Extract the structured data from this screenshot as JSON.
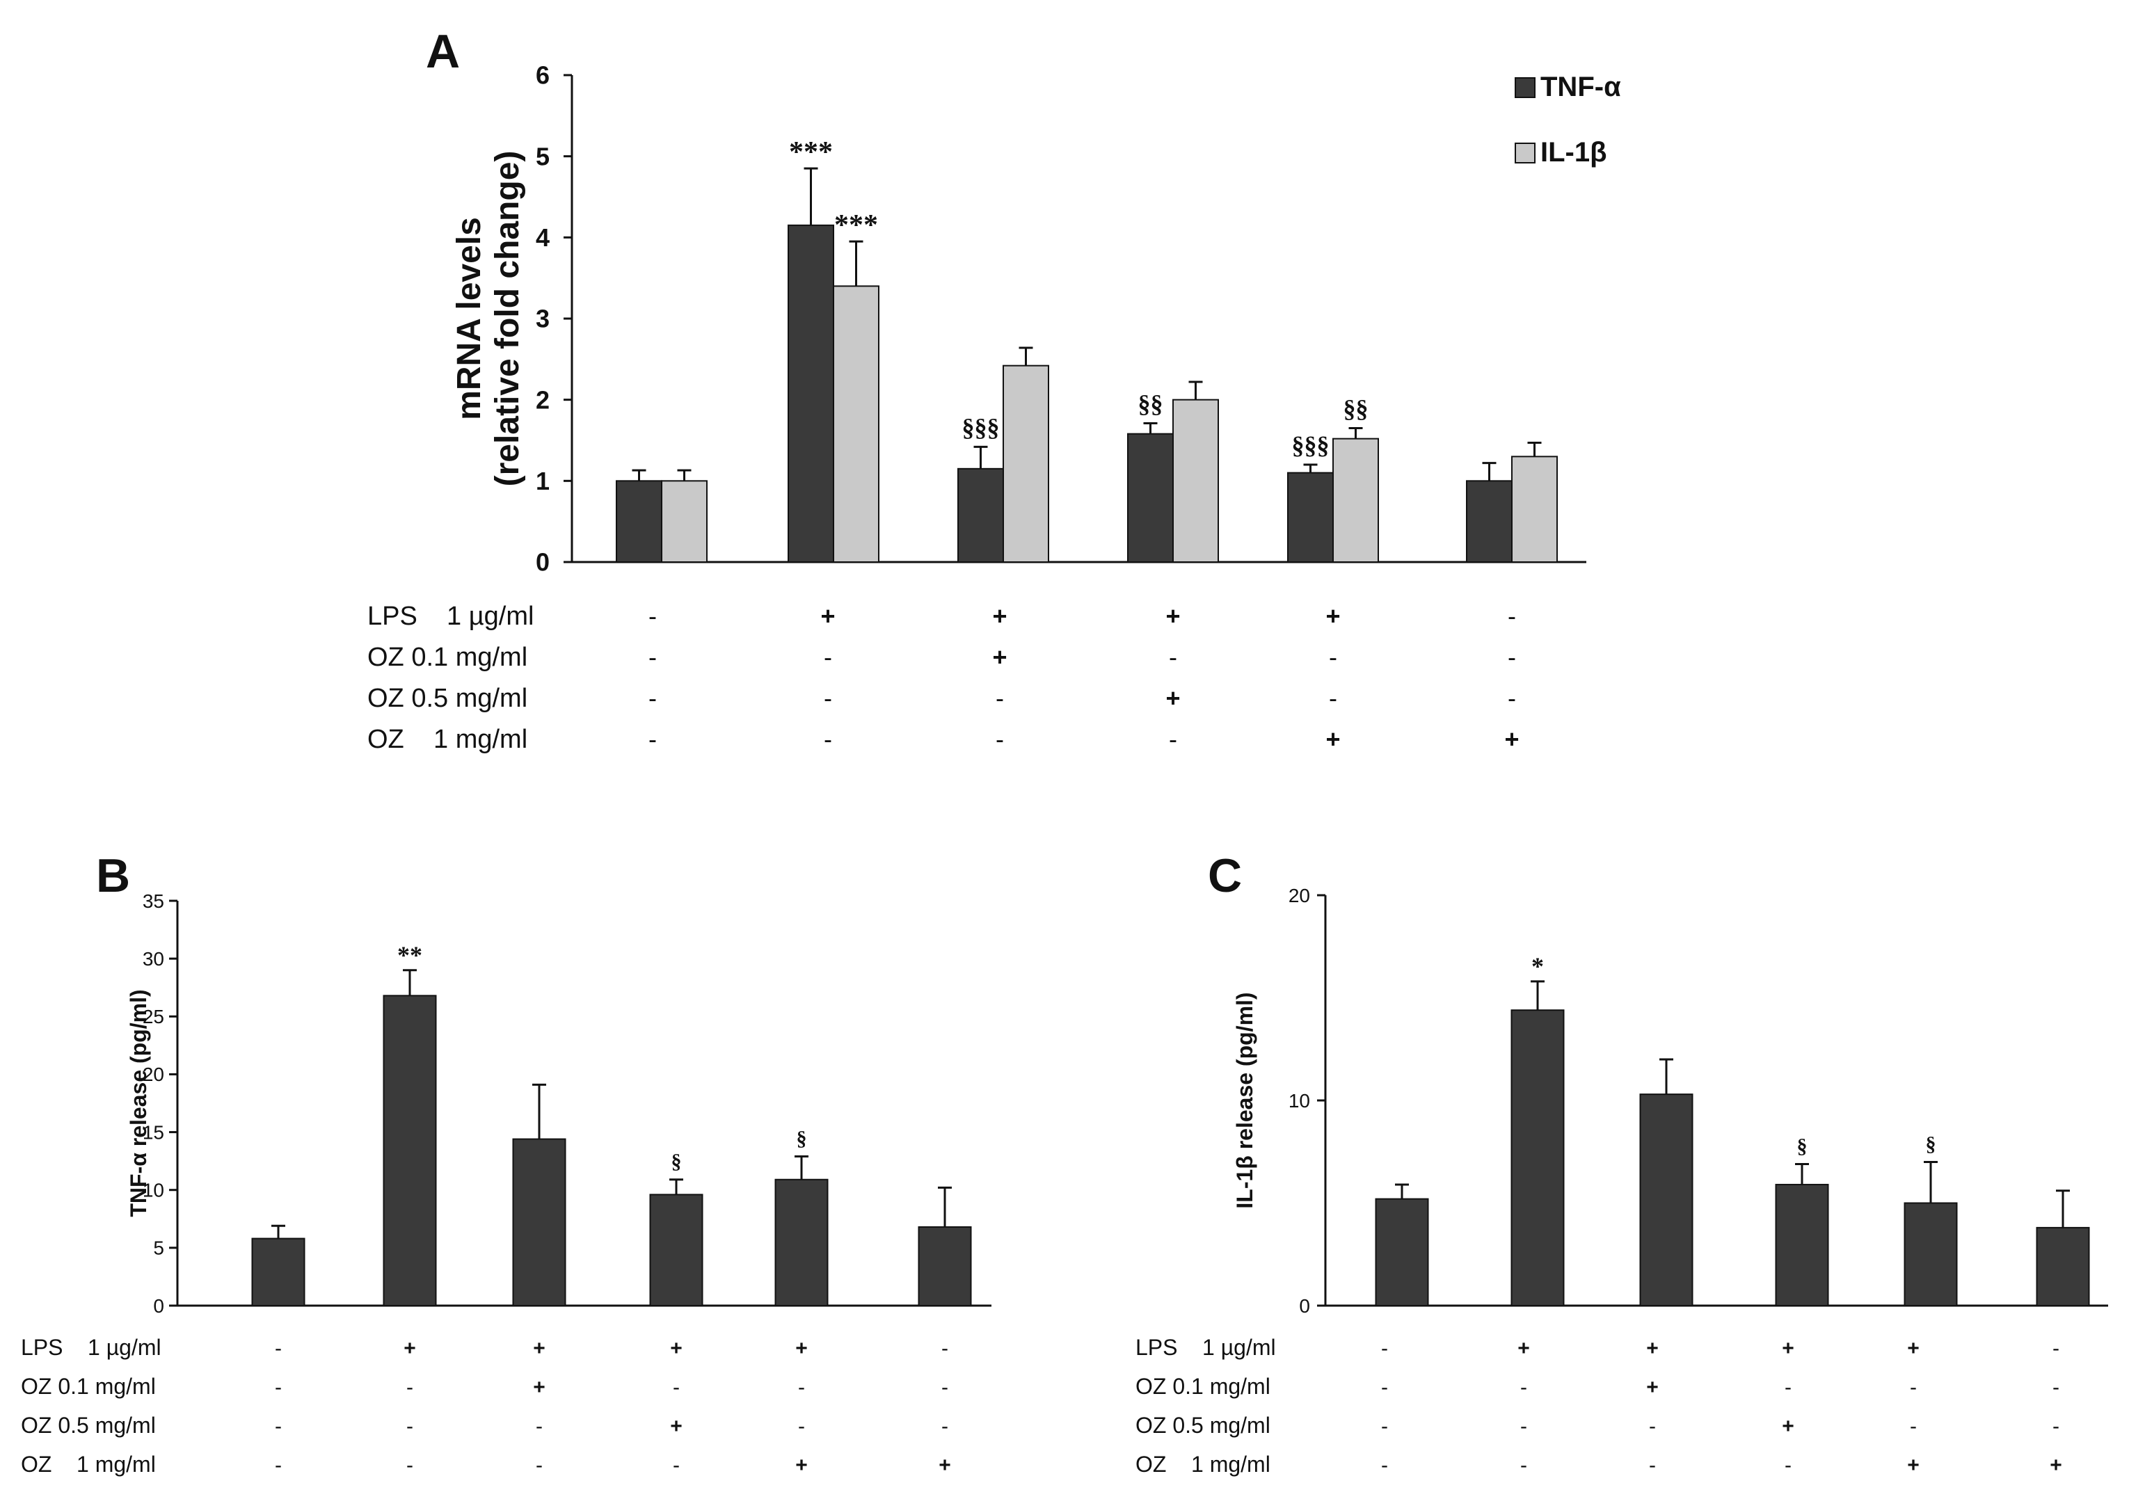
{
  "chart_data": [
    {
      "panel": "A",
      "type": "bar",
      "ylabel": [
        "mRNA levels",
        "(relative fold change)"
      ],
      "ylim": [
        0,
        6
      ],
      "yticks": [
        "0",
        "1",
        "2",
        "3",
        "4",
        "5",
        "6"
      ],
      "series": [
        {
          "name": "TNF-α",
          "color": "#3a3a3a",
          "values": [
            1.0,
            4.15,
            1.15,
            1.58,
            1.1,
            1.0
          ],
          "errors": [
            0.13,
            0.7,
            0.27,
            0.13,
            0.1,
            0.22
          ],
          "annotations": [
            "",
            "***",
            "§§§",
            "§§",
            "§§§",
            ""
          ]
        },
        {
          "name": "IL-1β",
          "color": "#c9c9c9",
          "values": [
            1.0,
            3.4,
            2.42,
            2.0,
            1.52,
            1.3
          ],
          "errors": [
            0.13,
            0.55,
            0.22,
            0.22,
            0.13,
            0.17
          ],
          "annotations": [
            "",
            "***",
            "",
            "",
            "§§",
            ""
          ]
        }
      ],
      "legend": [
        "TNF-α",
        "IL-1β"
      ],
      "conditions": {
        "labels": [
          "LPS    1 µg/ml",
          "OZ 0.1 mg/ml",
          "OZ 0.5 mg/ml",
          "OZ    1 mg/ml"
        ],
        "rows": [
          [
            "-",
            "+",
            "+",
            "+",
            "+",
            "-"
          ],
          [
            "-",
            "-",
            "+",
            "-",
            "-",
            "-"
          ],
          [
            "-",
            "-",
            "-",
            "+",
            "-",
            "-"
          ],
          [
            "-",
            "-",
            "-",
            "-",
            "+",
            "+"
          ]
        ]
      }
    },
    {
      "panel": "B",
      "type": "bar",
      "ylabel": [
        "TNF-α release (pg/ml)"
      ],
      "ylim": [
        0,
        35
      ],
      "yticks": [
        "0",
        "5",
        "10",
        "15",
        "20",
        "25",
        "30",
        "35"
      ],
      "series": [
        {
          "name": "TNF-α release",
          "color": "#3a3a3a",
          "values": [
            5.8,
            26.8,
            14.4,
            9.6,
            10.9,
            6.8
          ],
          "errors": [
            1.1,
            2.2,
            4.7,
            1.3,
            2.0,
            3.4
          ],
          "annotations": [
            "",
            "**",
            "",
            "§",
            "§",
            ""
          ]
        }
      ],
      "conditions": {
        "labels": [
          "LPS    1 µg/ml",
          "OZ 0.1 mg/ml",
          "OZ 0.5 mg/ml",
          "OZ    1 mg/ml"
        ],
        "rows": [
          [
            "-",
            "+",
            "+",
            "+",
            "+",
            "-"
          ],
          [
            "-",
            "-",
            "+",
            "-",
            "-",
            "-"
          ],
          [
            "-",
            "-",
            "-",
            "+",
            "-",
            "-"
          ],
          [
            "-",
            "-",
            "-",
            "-",
            "+",
            "+"
          ]
        ]
      }
    },
    {
      "panel": "C",
      "type": "bar",
      "ylabel": [
        "IL-1β release (pg/ml)"
      ],
      "ylim": [
        0,
        20
      ],
      "yticks": [
        "0",
        "10",
        "20"
      ],
      "series": [
        {
          "name": "IL-1β release",
          "color": "#3a3a3a",
          "values": [
            5.2,
            14.4,
            10.3,
            5.9,
            5.0,
            3.8
          ],
          "errors": [
            0.7,
            1.4,
            1.7,
            1.0,
            2.0,
            1.8
          ],
          "annotations": [
            "",
            "*",
            "",
            "§",
            "§",
            ""
          ]
        }
      ],
      "conditions": {
        "labels": [
          "LPS    1 µg/ml",
          "OZ 0.1 mg/ml",
          "OZ 0.5 mg/ml",
          "OZ    1 mg/ml"
        ],
        "rows": [
          [
            "-",
            "+",
            "+",
            "+",
            "+",
            "-"
          ],
          [
            "-",
            "-",
            "+",
            "-",
            "-",
            "-"
          ],
          [
            "-",
            "-",
            "-",
            "+",
            "-",
            "-"
          ],
          [
            "-",
            "-",
            "-",
            "-",
            "+",
            "+"
          ]
        ]
      }
    }
  ]
}
